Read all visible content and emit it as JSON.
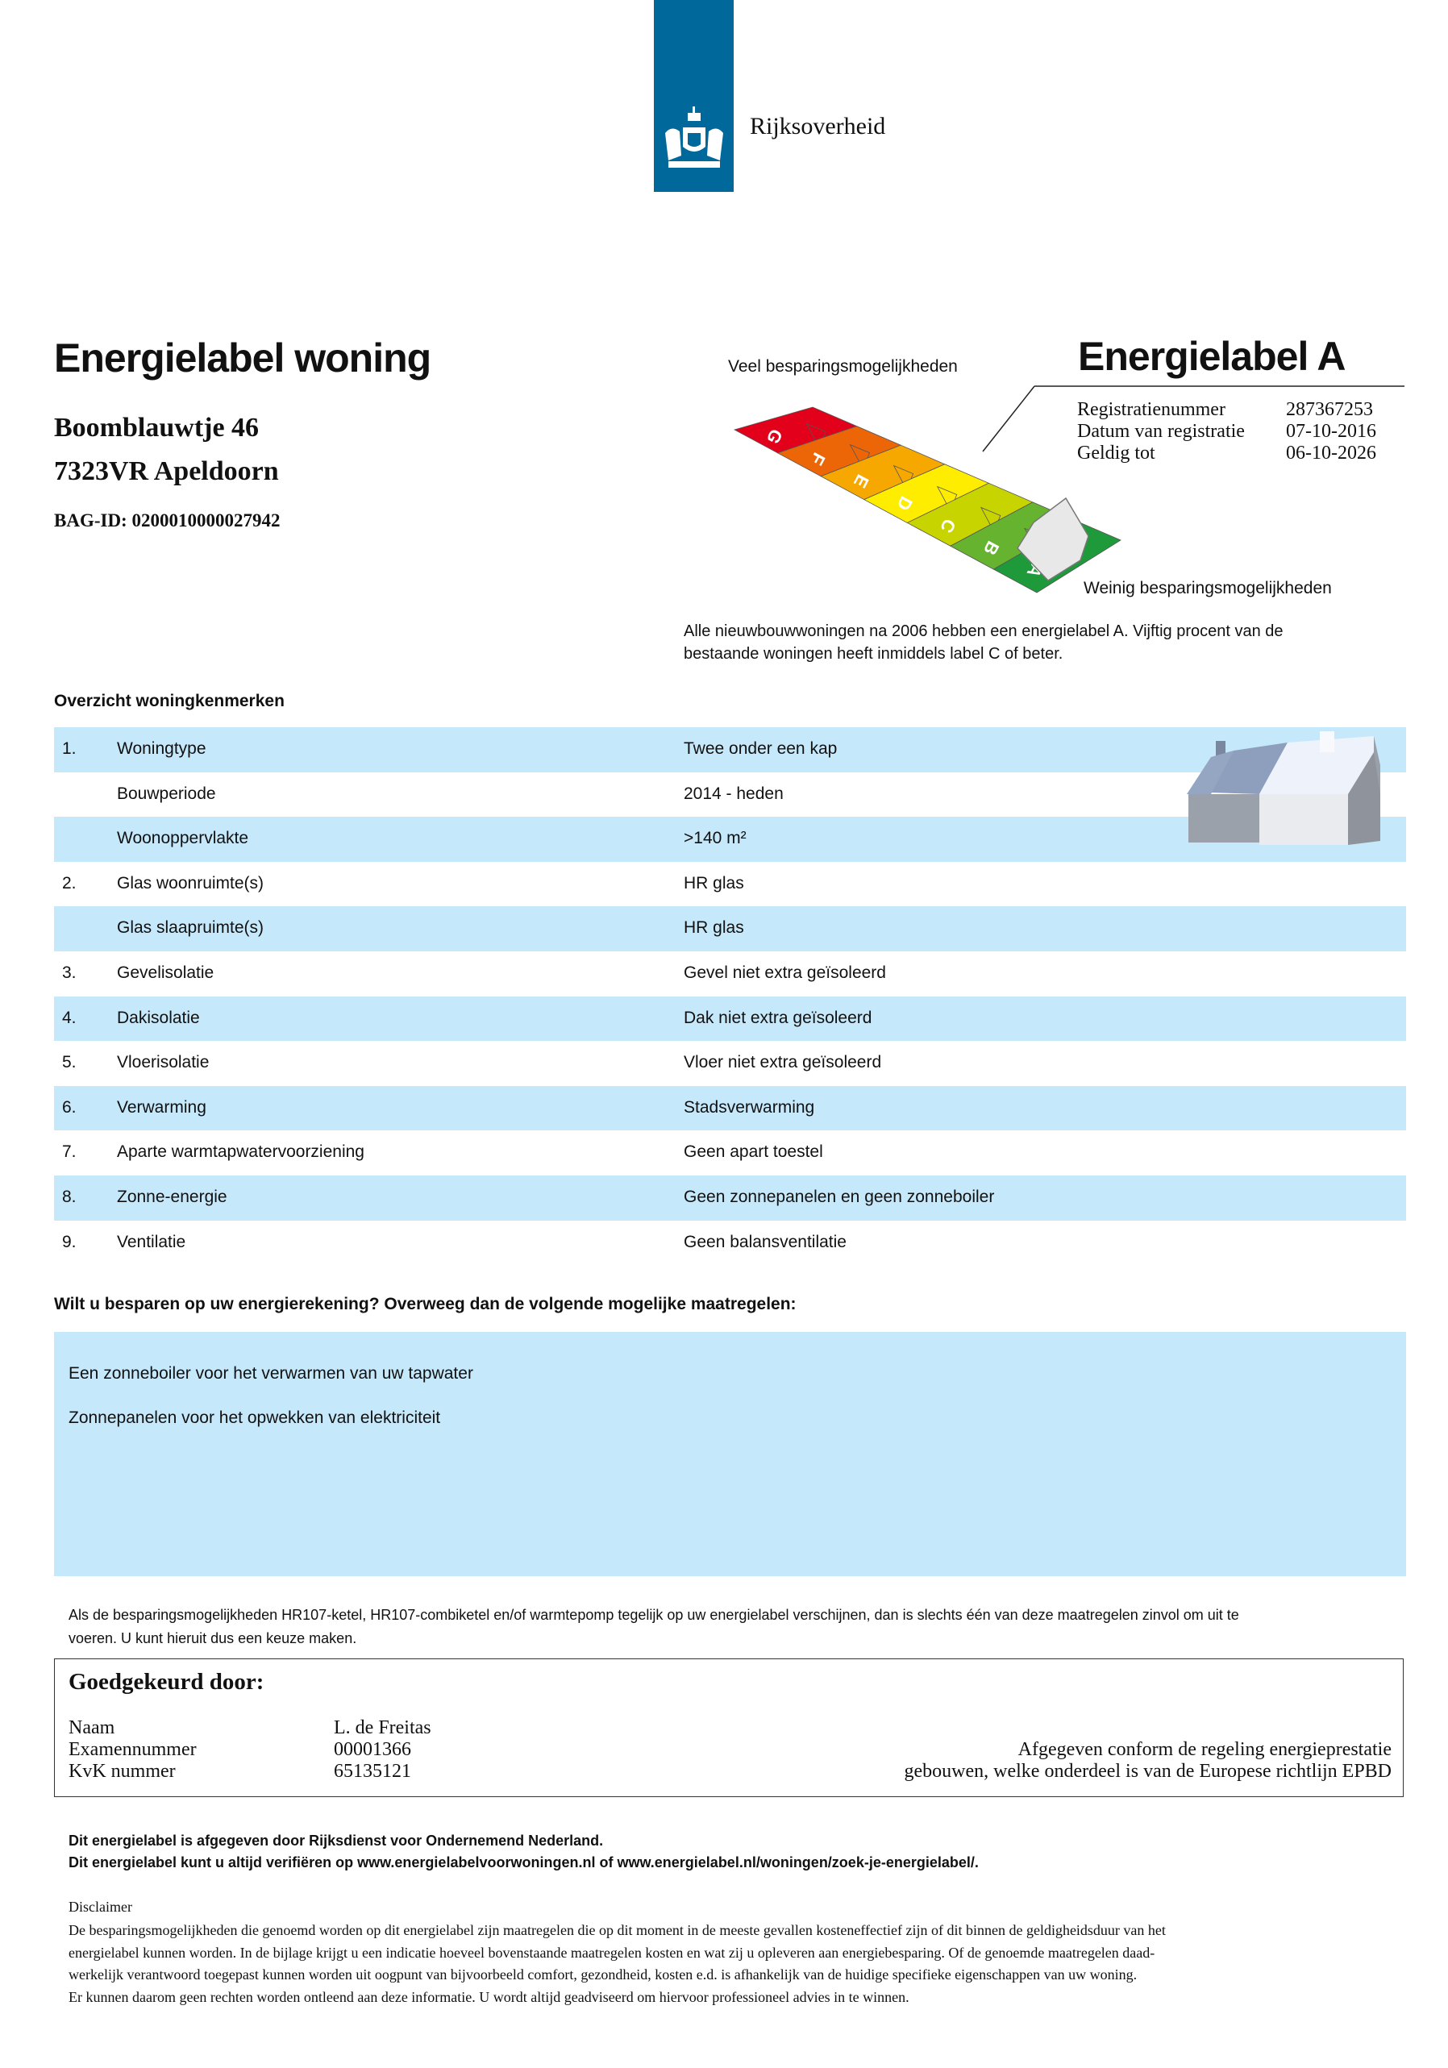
{
  "header": {
    "logo_text": "Rijksoverheid",
    "logo_color": "#01689b"
  },
  "title": "Energielabel woning",
  "address": {
    "street": "Boomblauwtje 46",
    "city": "7323VR Apeldoorn",
    "bag_id": "BAG-ID: 0200010000027942"
  },
  "label": {
    "title": "Energielabel A",
    "current_class": "A",
    "top_caption": "Veel besparingsmogelijkheden",
    "bottom_caption": "Weinig besparingsmogelijkheden",
    "bands": [
      {
        "letter": "G",
        "color": "#e2001a"
      },
      {
        "letter": "F",
        "color": "#ec6608"
      },
      {
        "letter": "E",
        "color": "#f6a800"
      },
      {
        "letter": "D",
        "color": "#ffed00"
      },
      {
        "letter": "C",
        "color": "#c8d400"
      },
      {
        "letter": "B",
        "color": "#65b32e"
      },
      {
        "letter": "A",
        "color": "#1f9a3a"
      }
    ],
    "registration": [
      {
        "key": "Registratienummer",
        "value": "287367253"
      },
      {
        "key": "Datum van registratie",
        "value": "07-10-2016"
      },
      {
        "key": "Geldig tot",
        "value": "06-10-2026"
      }
    ],
    "info_lines": [
      "Alle nieuwbouwwoningen na 2006 hebben een energielabel A. Vijftig procent van de",
      "bestaande woningen heeft inmiddels label C of beter."
    ]
  },
  "overview": {
    "heading": "Overzicht woningkenmerken",
    "row_color": "#c6e8fb",
    "rows": [
      {
        "num": "1.",
        "label": "Woningtype",
        "value": "Twee onder een kap"
      },
      {
        "num": "",
        "label": "Bouwperiode",
        "value": "2014 - heden"
      },
      {
        "num": "",
        "label": "Woonoppervlakte",
        "value": ">140 m²"
      },
      {
        "num": "2.",
        "label": "Glas woonruimte(s)",
        "value": "HR glas"
      },
      {
        "num": "",
        "label": "Glas slaapruimte(s)",
        "value": "HR glas"
      },
      {
        "num": "3.",
        "label": "Gevelisolatie",
        "value": "Gevel niet extra geïsoleerd"
      },
      {
        "num": "4.",
        "label": "Dakisolatie",
        "value": "Dak niet extra geïsoleerd"
      },
      {
        "num": "5.",
        "label": "Vloerisolatie",
        "value": "Vloer niet extra geïsoleerd"
      },
      {
        "num": "6.",
        "label": "Verwarming",
        "value": "Stadsverwarming"
      },
      {
        "num": "7.",
        "label": "Aparte warmtapwatervoorziening",
        "value": "Geen apart toestel"
      },
      {
        "num": "8.",
        "label": "Zonne-energie",
        "value": "Geen zonnepanelen en geen zonneboiler"
      },
      {
        "num": "9.",
        "label": "Ventilatie",
        "value": "Geen balansventilatie"
      }
    ]
  },
  "measures": {
    "heading": "Wilt u besparen op uw energierekening? Overweeg dan de volgende mogelijke maatregelen:",
    "items": [
      "Een zonneboiler voor het verwarmen van uw tapwater",
      "Zonnepanelen voor het opwekken van elektriciteit"
    ]
  },
  "note_lines": [
    "Als de besparingsmogelijkheden HR107-ketel, HR107-combiketel en/of warmtepomp tegelijk op uw energielabel verschijnen, dan is slechts één van deze maatregelen zinvol om uit te",
    "voeren. U kunt hieruit dus een keuze maken."
  ],
  "approval": {
    "heading": "Goedgekeurd door:",
    "fields": [
      {
        "key": "Naam",
        "value": "L. de Freitas"
      },
      {
        "key": "Examennummer",
        "value": "00001366"
      },
      {
        "key": "KvK nummer",
        "value": "65135121"
      }
    ],
    "statement_lines": [
      "Afgegeven conform de regeling energieprestatie",
      "gebouwen, welke onderdeel is van de Europese richtlijn EPBD"
    ]
  },
  "issued": [
    "Dit energielabel is afgegeven door Rijksdienst voor Ondernemend Nederland.",
    "Dit energielabel kunt u altijd verifiëren op www.energielabelvoorwoningen.nl of www.energielabel.nl/woningen/zoek-je-energielabel/."
  ],
  "disclaimer": {
    "heading": "Disclaimer",
    "lines": [
      "De besparingsmogelijkheden die genoemd worden op dit energielabel zijn maatregelen die op dit moment in de meeste gevallen kosteneffectief zijn of dit binnen de geldigheidsduur van het",
      "energielabel kunnen worden. In de bijlage krijgt u een indicatie hoeveel bovenstaande maatregelen kosten en wat zij u opleveren aan energiebesparing. Of de genoemde maatregelen daad-",
      "werkelijk verantwoord toegepast kunnen worden uit oogpunt van bijvoorbeeld comfort, gezondheid, kosten e.d. is afhankelijk van de huidige specifieke eigenschappen van uw woning.",
      "Er kunnen daarom geen rechten worden ontleend aan deze informatie. U wordt altijd geadviseerd om hiervoor professioneel advies in te winnen."
    ]
  }
}
